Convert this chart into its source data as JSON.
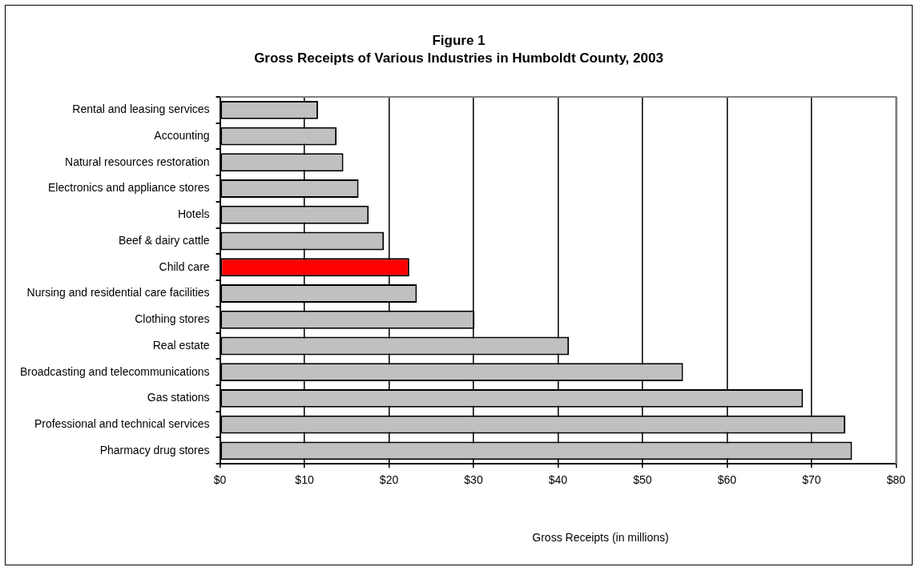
{
  "chart_data": {
    "type": "bar",
    "orientation": "horizontal",
    "title": "Figure 1",
    "subtitle": "Gross Receipts of Various Industries in Humboldt County, 2003",
    "xlabel": "Gross Receipts (in millions)",
    "categories": [
      "Rental and leasing services",
      "Accounting",
      "Natural resources restoration",
      "Electronics and appliance stores",
      "Hotels",
      "Beef & dairy cattle",
      "Child care",
      "Nursing and residential care facilities",
      "Clothing stores",
      "Real estate",
      "Broadcasting and telecommunications",
      "Gas stations",
      "Professional and technical services",
      "Pharmacy drug stores"
    ],
    "values": [
      11.6,
      13.8,
      14.6,
      16.4,
      17.6,
      19.4,
      22.4,
      23.3,
      30.1,
      41.3,
      54.8,
      69.0,
      74.0,
      74.8
    ],
    "colors": [
      "#c0c0c0",
      "#c0c0c0",
      "#c0c0c0",
      "#c0c0c0",
      "#c0c0c0",
      "#c0c0c0",
      "#ff0000",
      "#c0c0c0",
      "#c0c0c0",
      "#c0c0c0",
      "#c0c0c0",
      "#c0c0c0",
      "#c0c0c0",
      "#c0c0c0"
    ],
    "xlim": [
      0,
      80
    ],
    "xticks": [
      {
        "value": 0,
        "label": "$0"
      },
      {
        "value": 10,
        "label": "$10"
      },
      {
        "value": 20,
        "label": "$20"
      },
      {
        "value": 30,
        "label": "$30"
      },
      {
        "value": 40,
        "label": "$40"
      },
      {
        "value": 50,
        "label": "$50"
      },
      {
        "value": 60,
        "label": "$60"
      },
      {
        "value": 70,
        "label": "$70"
      },
      {
        "value": 80,
        "label": "$80"
      }
    ],
    "grid": "x"
  }
}
